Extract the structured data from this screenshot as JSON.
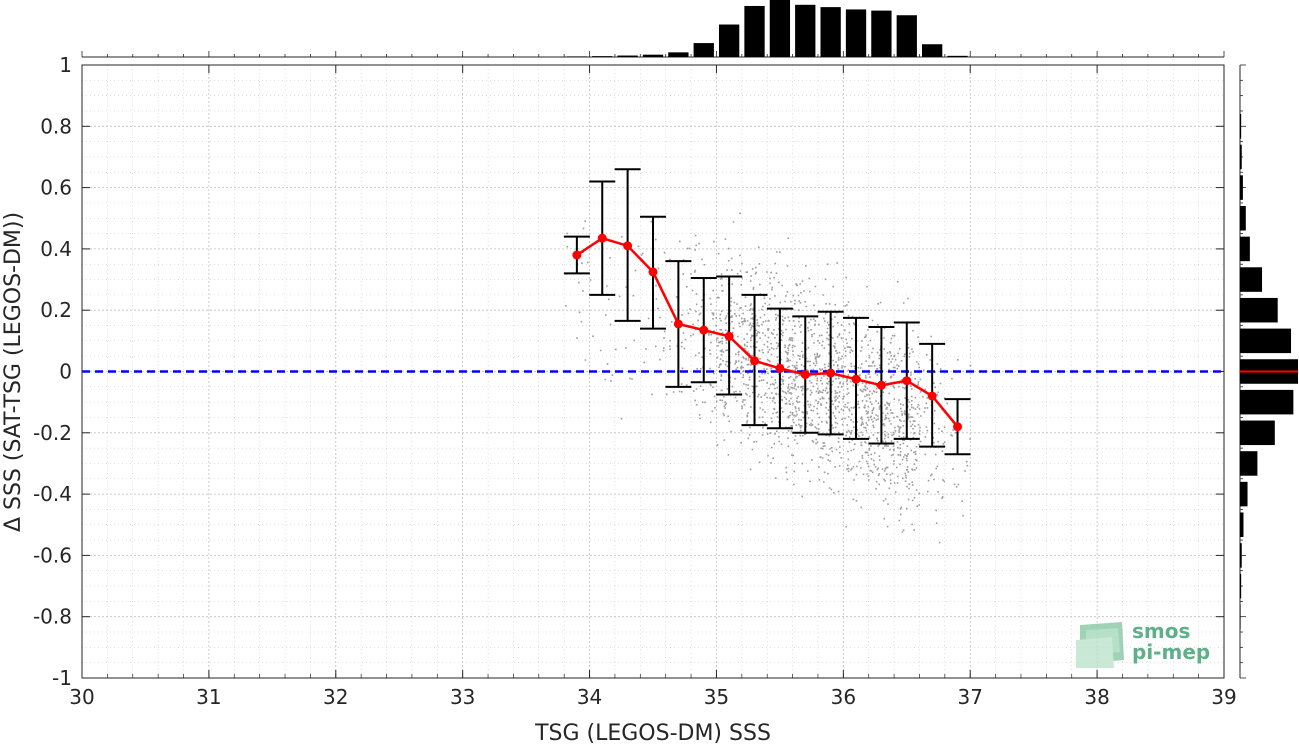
{
  "colors": {
    "scatter": "#8c8c8c",
    "mean_line": "#ff0000",
    "zero_line": "#0000ff",
    "error_bars": "#000000",
    "histogram": "#000000",
    "grid": "#bfbfbf",
    "logo": "#5fb08a"
  },
  "logo": {
    "line1": "smos",
    "line2": "pi-mep",
    "icon": "smos-pimep-logo-icon"
  },
  "chart_data": {
    "type": "scatter",
    "xlabel": "TSG (LEGOS-DM) SSS",
    "ylabel": "Δ SSS (SAT-TSG (LEGOS-DM))",
    "xlim": [
      30,
      39
    ],
    "ylim": [
      -1,
      1
    ],
    "x_ticks": [
      "30",
      "31",
      "32",
      "33",
      "34",
      "35",
      "36",
      "37",
      "38",
      "39"
    ],
    "y_ticks": [
      "1",
      "0.8",
      "0.6",
      "0.4",
      "0.2",
      "0",
      "-0.2",
      "-0.4",
      "-0.6",
      "-0.8",
      "-1"
    ],
    "grid": true,
    "reference_line": {
      "y": 0,
      "style": "dashed"
    },
    "binned_stats": [
      {
        "x": 33.9,
        "mean": 0.38,
        "low": 0.32,
        "high": 0.44
      },
      {
        "x": 34.1,
        "mean": 0.435,
        "low": 0.25,
        "high": 0.62
      },
      {
        "x": 34.3,
        "mean": 0.41,
        "low": 0.165,
        "high": 0.66
      },
      {
        "x": 34.5,
        "mean": 0.325,
        "low": 0.14,
        "high": 0.505
      },
      {
        "x": 34.7,
        "mean": 0.155,
        "low": -0.05,
        "high": 0.36
      },
      {
        "x": 34.9,
        "mean": 0.135,
        "low": -0.035,
        "high": 0.305
      },
      {
        "x": 35.1,
        "mean": 0.115,
        "low": -0.075,
        "high": 0.31
      },
      {
        "x": 35.3,
        "mean": 0.035,
        "low": -0.175,
        "high": 0.25
      },
      {
        "x": 35.5,
        "mean": 0.01,
        "low": -0.185,
        "high": 0.205
      },
      {
        "x": 35.7,
        "mean": -0.01,
        "low": -0.2,
        "high": 0.18
      },
      {
        "x": 35.9,
        "mean": -0.005,
        "low": -0.205,
        "high": 0.195
      },
      {
        "x": 36.1,
        "mean": -0.025,
        "low": -0.22,
        "high": 0.175
      },
      {
        "x": 36.3,
        "mean": -0.045,
        "low": -0.235,
        "high": 0.145
      },
      {
        "x": 36.5,
        "mean": -0.03,
        "low": -0.22,
        "high": 0.16
      },
      {
        "x": 36.7,
        "mean": -0.08,
        "low": -0.245,
        "high": 0.09
      },
      {
        "x": 36.9,
        "mean": -0.18,
        "low": -0.27,
        "high": -0.09
      }
    ],
    "scatter_cloud": {
      "x_range": [
        33.7,
        37.0
      ],
      "center_slope": -0.17,
      "center_at_35": 0.1,
      "spread": 0.2,
      "density_peak_x": 35.6
    },
    "x_histogram": {
      "bin_centers": [
        33.9,
        34.1,
        34.3,
        34.5,
        34.7,
        34.9,
        35.1,
        35.3,
        35.5,
        35.7,
        35.9,
        36.1,
        36.3,
        36.5,
        36.7,
        36.9
      ],
      "relative_counts": [
        0.01,
        0.015,
        0.025,
        0.04,
        0.08,
        0.24,
        0.56,
        0.88,
        1.0,
        0.9,
        0.86,
        0.82,
        0.8,
        0.72,
        0.22,
        0.02
      ]
    },
    "y_histogram": {
      "bin_centers": [
        0.8,
        0.7,
        0.6,
        0.5,
        0.4,
        0.3,
        0.2,
        0.1,
        0.0,
        -0.1,
        -0.2,
        -0.3,
        -0.4,
        -0.5,
        -0.6,
        -0.7,
        -0.8
      ],
      "relative_counts": [
        0.02,
        0.03,
        0.05,
        0.1,
        0.17,
        0.38,
        0.65,
        0.88,
        1.0,
        0.92,
        0.6,
        0.3,
        0.13,
        0.06,
        0.03,
        0.02,
        0.01
      ],
      "mean_marker_y": 0.0
    }
  }
}
